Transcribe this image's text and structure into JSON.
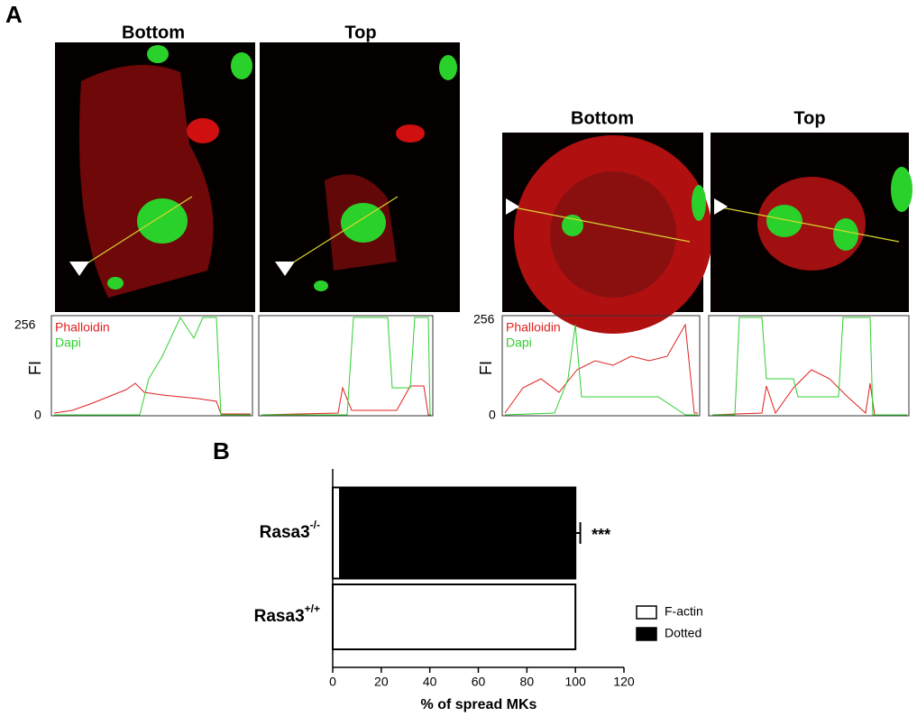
{
  "panel_a": {
    "label": "A",
    "images": [
      {
        "title": "Bottom"
      },
      {
        "title": "Top"
      },
      {
        "title": "Bottom"
      },
      {
        "title": "Top"
      }
    ],
    "profiles": {
      "ylabel": "FI",
      "yticks": [
        0,
        256
      ],
      "legend": [
        "Phalloidin",
        "Dapi"
      ]
    }
  },
  "chart_data": {
    "type": "bar",
    "orientation": "horizontal",
    "stacked": true,
    "panel_label": "B",
    "categories": [
      {
        "text": "Rasa3",
        "superscript": "-/-"
      },
      {
        "text": "Rasa3",
        "superscript": "+/+"
      }
    ],
    "series": [
      {
        "name": "F-actin",
        "color": "#ffffff",
        "values": [
          3,
          100
        ]
      },
      {
        "name": "Dotted",
        "color": "#000000",
        "values": [
          97,
          0
        ],
        "errors": [
          2,
          null
        ]
      }
    ],
    "annotations": [
      {
        "text": "***",
        "category": 0
      }
    ],
    "xlabel": "% of spread MKs",
    "xlim": [
      0,
      120
    ],
    "xticks": [
      0,
      20,
      40,
      60,
      80,
      100,
      120
    ]
  }
}
